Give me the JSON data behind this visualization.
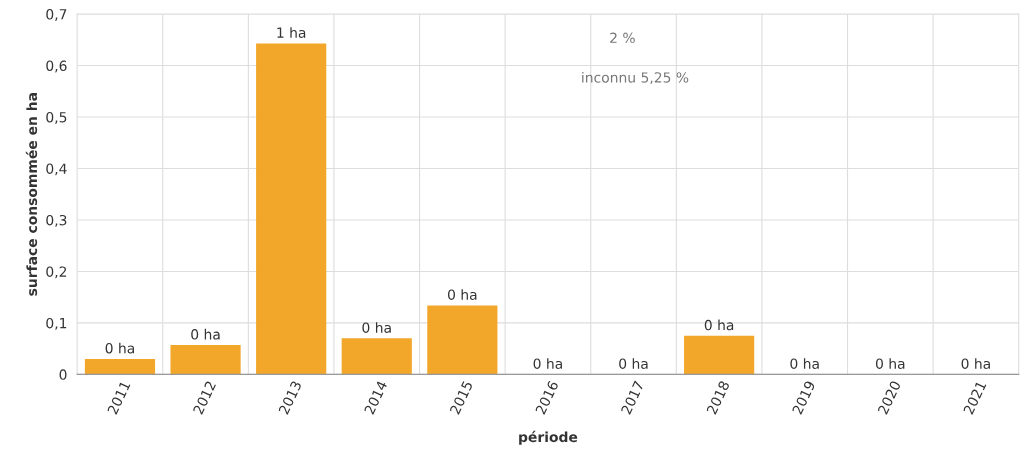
{
  "chart_data": {
    "type": "bar",
    "xlabel": "période",
    "ylabel": "surface consommée en ha",
    "categories": [
      "2011",
      "2012",
      "2013",
      "2014",
      "2015",
      "2016",
      "2017",
      "2018",
      "2019",
      "2020",
      "2021"
    ],
    "values": [
      0.03,
      0.057,
      0.643,
      0.07,
      0.134,
      0,
      0,
      0.075,
      0,
      0,
      0
    ],
    "value_labels": [
      "0 ha",
      "0 ha",
      "1 ha",
      "0 ha",
      "0 ha",
      "0 ha",
      "0 ha",
      "0 ha",
      "0 ha",
      "0 ha",
      "0 ha"
    ],
    "color": "#f2a72b",
    "ylim": [
      0,
      0.7
    ],
    "yticks": [
      0,
      {
        "value": 0.1,
        "label": "0,1"
      },
      {
        "value": 0.2,
        "label": "0,2"
      },
      {
        "value": 0.3,
        "label": "0,3"
      },
      {
        "value": 0.4,
        "label": "0,4"
      },
      {
        "value": 0.5,
        "label": "0,5"
      },
      {
        "value": 0.6,
        "label": "0,6"
      },
      {
        "value": 0.7,
        "label": "0,7"
      }
    ],
    "annotations": [
      "2 %",
      "inconnu 5,25 %"
    ],
    "grid": true,
    "legend": false
  }
}
